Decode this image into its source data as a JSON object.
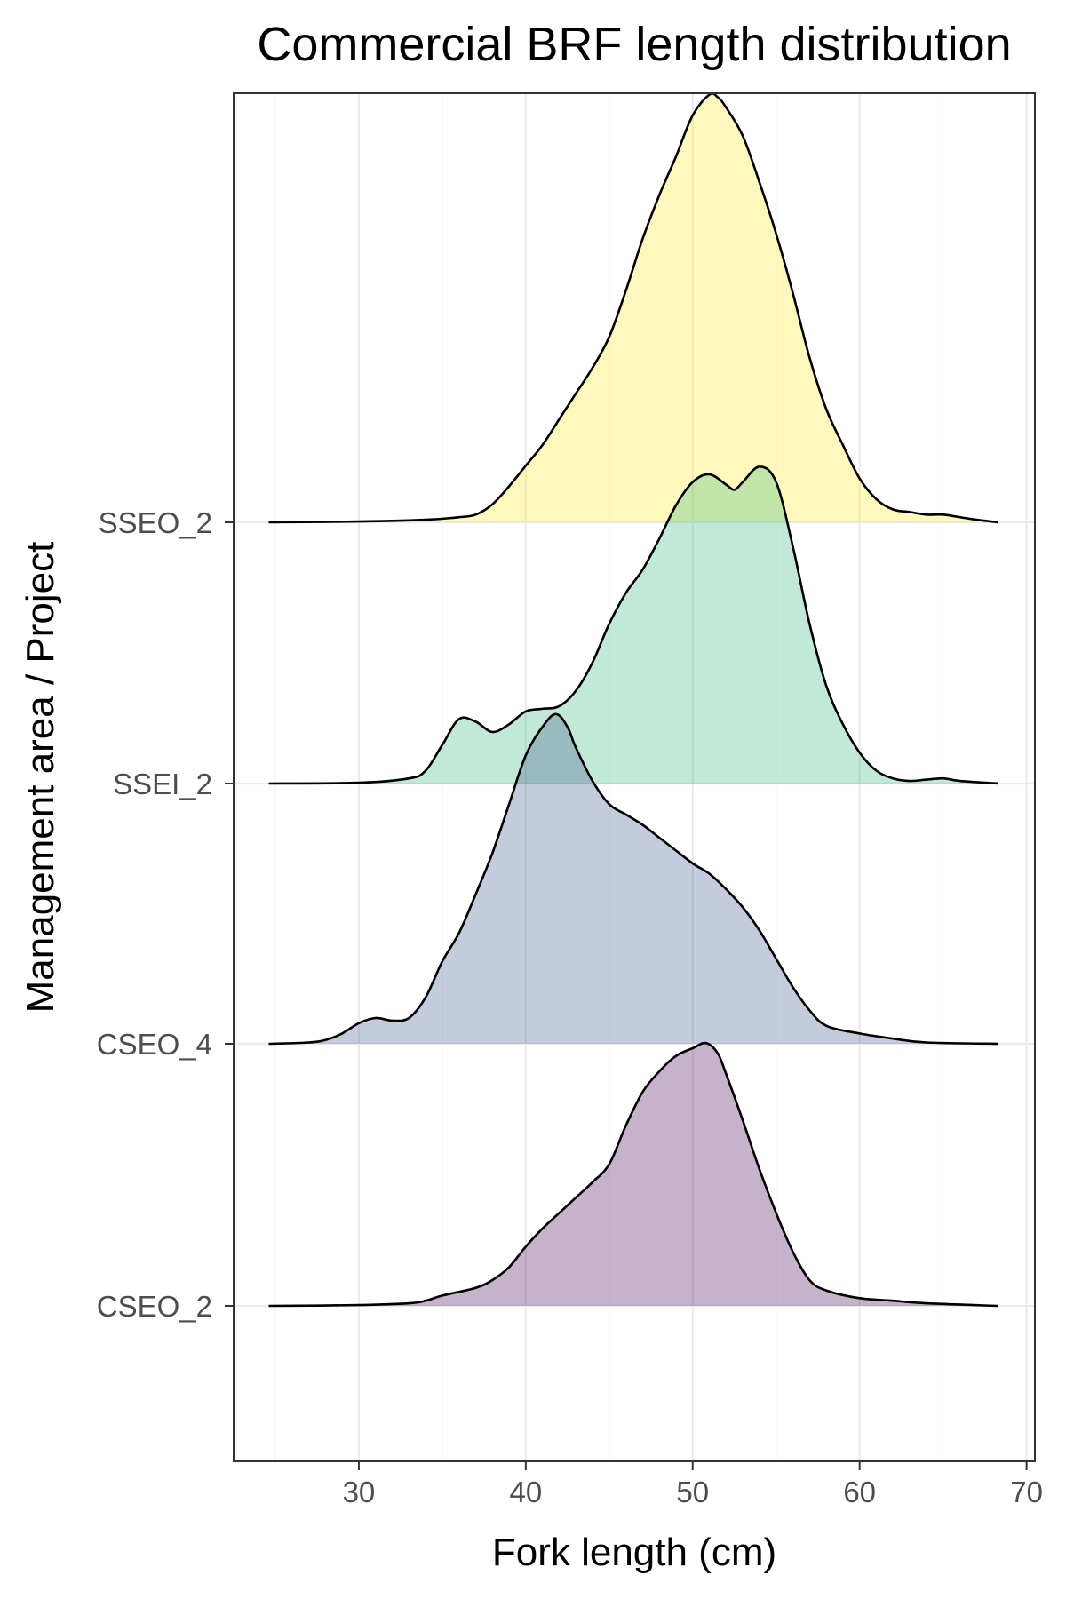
{
  "chart_data": {
    "type": "ridgeline",
    "title": "Commercial BRF length distribution",
    "xlabel": "Fork length (cm)",
    "ylabel": "Management area / Project",
    "xlim": [
      22.5,
      70.5
    ],
    "x_ticks": [
      30,
      40,
      50,
      60,
      70
    ],
    "x_range": [
      24.6,
      68.3
    ],
    "grid": true,
    "legend": "none",
    "series": [
      {
        "name": "CSEO_2",
        "color": "#440154",
        "points": [
          [
            24.6,
            0
          ],
          [
            30,
            0.003
          ],
          [
            33,
            0.01
          ],
          [
            34,
            0.02
          ],
          [
            35,
            0.04
          ],
          [
            37,
            0.07
          ],
          [
            38,
            0.1
          ],
          [
            39,
            0.15
          ],
          [
            40,
            0.23
          ],
          [
            41,
            0.3
          ],
          [
            42,
            0.36
          ],
          [
            43,
            0.42
          ],
          [
            44,
            0.48
          ],
          [
            45,
            0.55
          ],
          [
            46,
            0.7
          ],
          [
            47,
            0.83
          ],
          [
            48,
            0.91
          ],
          [
            49,
            0.97
          ],
          [
            50,
            1.0
          ],
          [
            50.8,
            1.02
          ],
          [
            51.5,
            0.98
          ],
          [
            52,
            0.9
          ],
          [
            53,
            0.72
          ],
          [
            54,
            0.53
          ],
          [
            55,
            0.36
          ],
          [
            56,
            0.21
          ],
          [
            57,
            0.1
          ],
          [
            58,
            0.06
          ],
          [
            60,
            0.03
          ],
          [
            62,
            0.02
          ],
          [
            64,
            0.01
          ],
          [
            68.3,
            0
          ]
        ]
      },
      {
        "name": "CSEO_4",
        "color": "#3b528b",
        "points": [
          [
            24.6,
            0
          ],
          [
            27,
            0.005
          ],
          [
            28,
            0.015
          ],
          [
            29,
            0.04
          ],
          [
            30,
            0.08
          ],
          [
            31,
            0.1
          ],
          [
            32,
            0.09
          ],
          [
            33,
            0.1
          ],
          [
            34,
            0.18
          ],
          [
            35,
            0.32
          ],
          [
            36,
            0.43
          ],
          [
            37,
            0.58
          ],
          [
            38,
            0.74
          ],
          [
            39,
            0.93
          ],
          [
            40,
            1.12
          ],
          [
            41,
            1.23
          ],
          [
            41.8,
            1.28
          ],
          [
            42.5,
            1.23
          ],
          [
            43,
            1.15
          ],
          [
            44,
            1.02
          ],
          [
            45,
            0.93
          ],
          [
            46,
            0.89
          ],
          [
            47,
            0.85
          ],
          [
            48,
            0.8
          ],
          [
            49,
            0.75
          ],
          [
            50,
            0.7
          ],
          [
            51,
            0.66
          ],
          [
            52,
            0.6
          ],
          [
            53,
            0.53
          ],
          [
            54,
            0.44
          ],
          [
            55,
            0.33
          ],
          [
            56,
            0.22
          ],
          [
            57,
            0.13
          ],
          [
            58,
            0.07
          ],
          [
            60,
            0.04
          ],
          [
            62,
            0.02
          ],
          [
            64,
            0.005
          ],
          [
            68.3,
            0
          ]
        ]
      },
      {
        "name": "SSEI_2",
        "color": "#35b779",
        "points": [
          [
            24.6,
            0
          ],
          [
            30,
            0.003
          ],
          [
            33,
            0.02
          ],
          [
            34,
            0.05
          ],
          [
            35,
            0.15
          ],
          [
            36,
            0.25
          ],
          [
            37,
            0.24
          ],
          [
            38,
            0.2
          ],
          [
            39,
            0.23
          ],
          [
            40,
            0.28
          ],
          [
            41,
            0.29
          ],
          [
            42,
            0.3
          ],
          [
            43,
            0.36
          ],
          [
            44,
            0.47
          ],
          [
            45,
            0.62
          ],
          [
            46,
            0.74
          ],
          [
            47,
            0.83
          ],
          [
            48,
            0.95
          ],
          [
            49,
            1.08
          ],
          [
            50,
            1.17
          ],
          [
            51,
            1.2
          ],
          [
            52,
            1.16
          ],
          [
            52.5,
            1.14
          ],
          [
            53,
            1.17
          ],
          [
            54,
            1.23
          ],
          [
            55,
            1.17
          ],
          [
            56,
            0.92
          ],
          [
            57,
            0.62
          ],
          [
            58,
            0.38
          ],
          [
            59,
            0.23
          ],
          [
            60,
            0.12
          ],
          [
            61,
            0.05
          ],
          [
            62,
            0.02
          ],
          [
            63,
            0.01
          ],
          [
            64,
            0.015
          ],
          [
            65,
            0.02
          ],
          [
            66,
            0.01
          ],
          [
            68.3,
            0
          ]
        ]
      },
      {
        "name": "SSEO_2",
        "color": "#fde725",
        "points": [
          [
            24.6,
            0
          ],
          [
            30,
            0.003
          ],
          [
            34,
            0.01
          ],
          [
            36,
            0.02
          ],
          [
            37,
            0.03
          ],
          [
            38,
            0.07
          ],
          [
            39,
            0.14
          ],
          [
            40,
            0.22
          ],
          [
            41,
            0.3
          ],
          [
            42,
            0.4
          ],
          [
            43,
            0.5
          ],
          [
            44,
            0.6
          ],
          [
            45,
            0.72
          ],
          [
            46,
            0.9
          ],
          [
            47,
            1.1
          ],
          [
            48,
            1.27
          ],
          [
            49,
            1.42
          ],
          [
            50,
            1.58
          ],
          [
            51,
            1.66
          ],
          [
            51.5,
            1.65
          ],
          [
            52,
            1.61
          ],
          [
            53,
            1.5
          ],
          [
            54,
            1.32
          ],
          [
            55,
            1.12
          ],
          [
            56,
            0.89
          ],
          [
            57,
            0.64
          ],
          [
            58,
            0.44
          ],
          [
            59,
            0.3
          ],
          [
            60,
            0.17
          ],
          [
            61,
            0.09
          ],
          [
            62,
            0.05
          ],
          [
            63,
            0.04
          ],
          [
            64,
            0.03
          ],
          [
            65,
            0.03
          ],
          [
            66,
            0.02
          ],
          [
            67,
            0.01
          ],
          [
            68.3,
            0
          ]
        ]
      }
    ]
  }
}
